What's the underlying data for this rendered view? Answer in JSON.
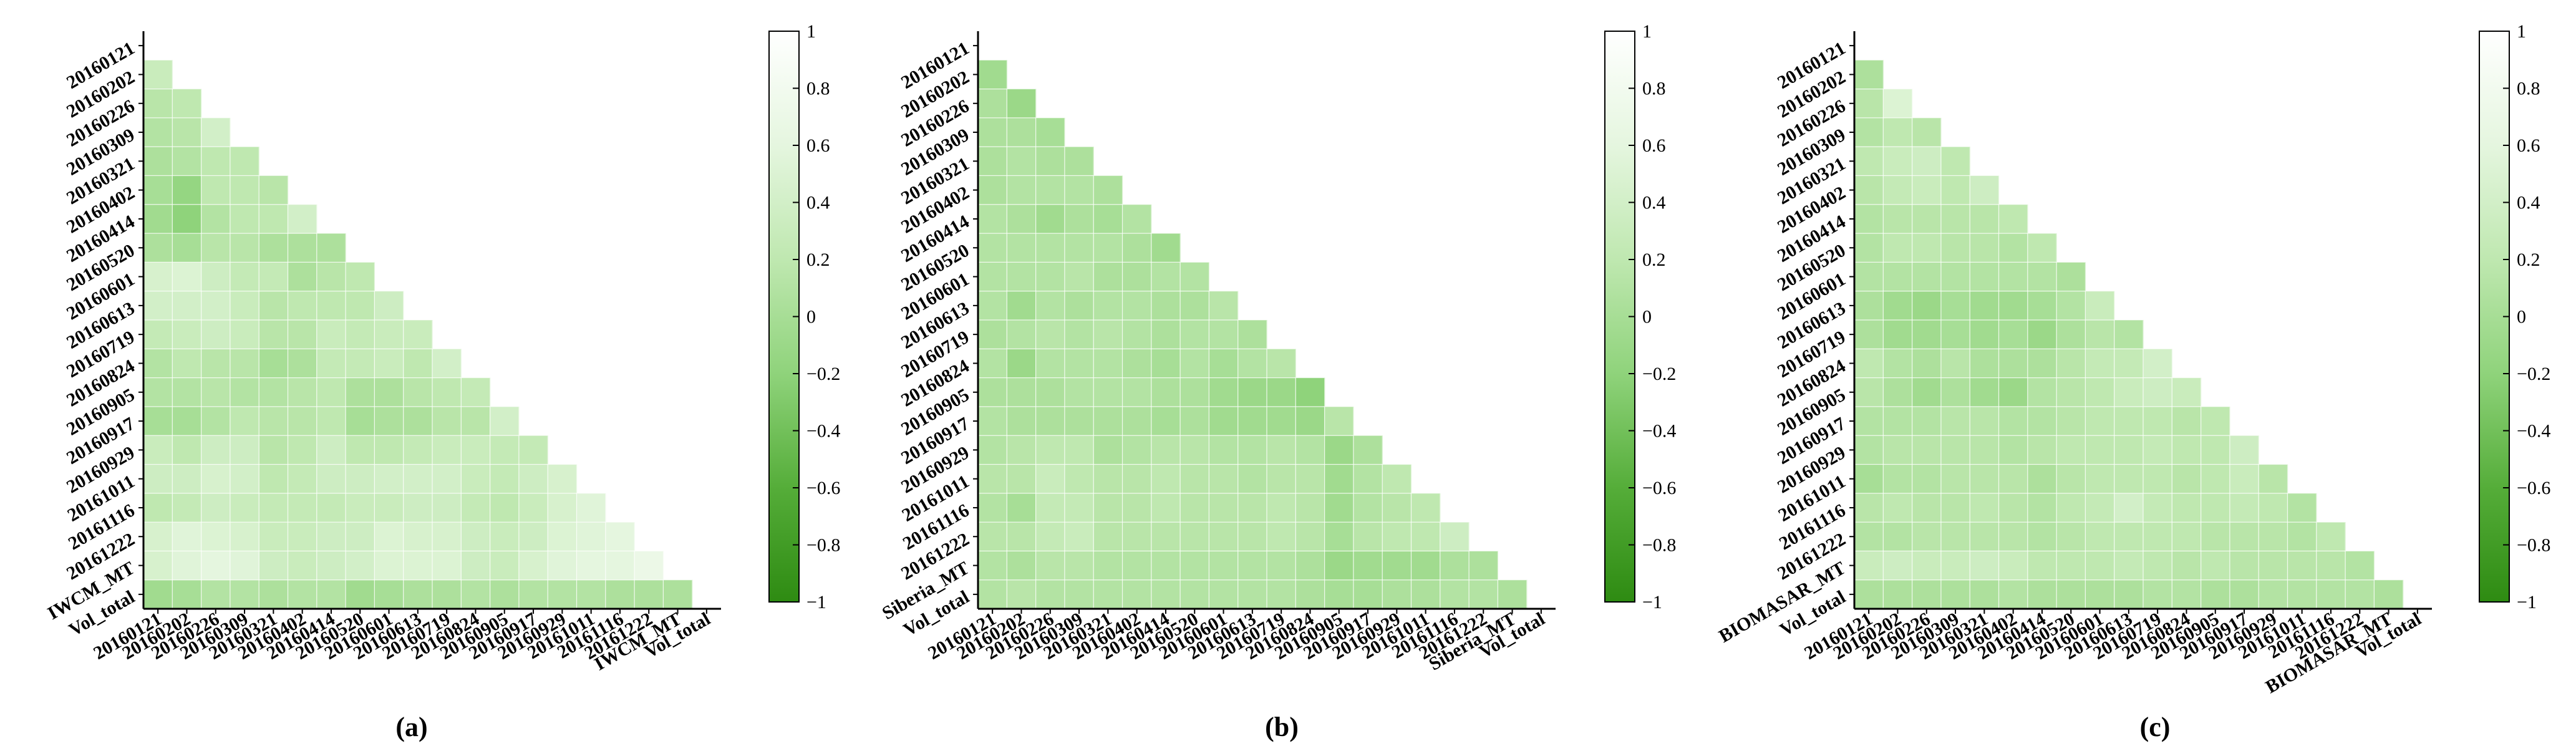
{
  "figure": {
    "background": "#ffffff",
    "colormap": {
      "stops": [
        {
          "v": -1.0,
          "color": "#2e8b12"
        },
        {
          "v": -0.6,
          "color": "#55ad39"
        },
        {
          "v": -0.2,
          "color": "#8fd37b"
        },
        {
          "v": 0.2,
          "color": "#bfe8b0"
        },
        {
          "v": 0.6,
          "color": "#e5f6df"
        },
        {
          "v": 1.0,
          "color": "#ffffff"
        }
      ]
    }
  },
  "chart_data": [
    {
      "type": "heatmap",
      "panel_label": "(a)",
      "variables": [
        "20160121",
        "20160202",
        "20160226",
        "20160309",
        "20160321",
        "20160402",
        "20160414",
        "20160520",
        "20160601",
        "20160613",
        "20160719",
        "20160824",
        "20160905",
        "20160917",
        "20160929",
        "20161011",
        "20161116",
        "20161222",
        "IWCM_MT",
        "Vol_total"
      ],
      "lower_triangle": [
        [
          0.3
        ],
        [
          0.15,
          0.2
        ],
        [
          0.1,
          0.15,
          0.4
        ],
        [
          0.05,
          0.1,
          0.2,
          0.2
        ],
        [
          0.0,
          -0.15,
          0.2,
          0.2,
          0.15
        ],
        [
          -0.05,
          -0.2,
          0.1,
          0.2,
          0.2,
          0.4
        ],
        [
          0.05,
          0.0,
          0.15,
          0.15,
          0.05,
          0.05,
          0.05
        ],
        [
          0.45,
          0.5,
          0.35,
          0.25,
          0.25,
          0.05,
          0.15,
          0.2
        ],
        [
          0.4,
          0.4,
          0.4,
          0.3,
          0.15,
          0.2,
          0.2,
          0.2,
          0.35
        ],
        [
          0.25,
          0.3,
          0.35,
          0.3,
          0.15,
          0.15,
          0.3,
          0.25,
          0.3,
          0.3
        ],
        [
          0.1,
          0.2,
          0.15,
          0.15,
          0.0,
          0.05,
          0.25,
          0.25,
          0.3,
          0.2,
          0.4
        ],
        [
          0.1,
          0.1,
          0.15,
          0.1,
          0.1,
          0.15,
          0.2,
          0.05,
          0.05,
          0.15,
          0.2,
          0.25
        ],
        [
          0.0,
          0.0,
          0.1,
          0.2,
          0.15,
          0.15,
          0.2,
          0.0,
          0.05,
          0.05,
          0.15,
          0.15,
          0.4
        ],
        [
          0.3,
          0.2,
          0.35,
          0.35,
          0.15,
          0.2,
          0.35,
          0.2,
          0.2,
          0.25,
          0.3,
          0.3,
          0.25,
          0.25
        ],
        [
          0.35,
          0.35,
          0.45,
          0.4,
          0.2,
          0.25,
          0.35,
          0.35,
          0.4,
          0.4,
          0.4,
          0.3,
          0.25,
          0.35,
          0.45
        ],
        [
          0.2,
          0.25,
          0.35,
          0.3,
          0.25,
          0.25,
          0.25,
          0.3,
          0.3,
          0.35,
          0.35,
          0.25,
          0.2,
          0.3,
          0.45,
          0.55
        ],
        [
          0.45,
          0.55,
          0.5,
          0.45,
          0.3,
          0.3,
          0.35,
          0.35,
          0.5,
          0.45,
          0.45,
          0.35,
          0.3,
          0.35,
          0.5,
          0.55,
          0.6
        ],
        [
          0.45,
          0.55,
          0.6,
          0.55,
          0.35,
          0.3,
          0.35,
          0.4,
          0.5,
          0.5,
          0.5,
          0.35,
          0.3,
          0.45,
          0.55,
          0.6,
          0.6,
          0.7
        ],
        [
          -0.05,
          0.0,
          0.1,
          0.1,
          0.05,
          0.1,
          0.1,
          -0.05,
          0.0,
          0.05,
          0.05,
          0.1,
          0.05,
          0.1,
          0.1,
          0.1,
          0.05,
          0.05,
          0.05
        ]
      ]
    },
    {
      "type": "heatmap",
      "panel_label": "(b)",
      "variables": [
        "20160121",
        "20160202",
        "20160226",
        "20160309",
        "20160321",
        "20160402",
        "20160414",
        "20160520",
        "20160601",
        "20160613",
        "20160719",
        "20160824",
        "20160905",
        "20160917",
        "20160929",
        "20161011",
        "20161116",
        "20161222",
        "Siberia_MT",
        "Vol_total"
      ],
      "lower_triangle": [
        [
          -0.05
        ],
        [
          0.05,
          -0.1
        ],
        [
          0.05,
          0.05,
          0.0
        ],
        [
          0.05,
          0.1,
          0.05,
          0.05
        ],
        [
          0.05,
          0.1,
          0.1,
          0.1,
          0.05
        ],
        [
          0.1,
          0.05,
          -0.05,
          0.05,
          0.0,
          0.1
        ],
        [
          0.1,
          0.1,
          0.1,
          0.1,
          0.1,
          0.05,
          -0.05
        ],
        [
          0.1,
          0.1,
          0.1,
          0.15,
          0.05,
          0.05,
          0.1,
          0.1
        ],
        [
          0.1,
          -0.05,
          0.1,
          0.05,
          0.1,
          0.1,
          0.05,
          0.05,
          0.15
        ],
        [
          0.05,
          0.1,
          0.15,
          0.1,
          0.15,
          0.1,
          0.05,
          0.1,
          0.1,
          0.05
        ],
        [
          0.1,
          -0.1,
          0.1,
          0.1,
          0.1,
          0.05,
          0.0,
          0.1,
          0.0,
          0.1,
          0.15
        ],
        [
          0.05,
          0.05,
          0.05,
          0.1,
          0.1,
          0.1,
          0.05,
          0.05,
          -0.05,
          -0.1,
          -0.1,
          -0.2
        ],
        [
          0.1,
          0.05,
          0.05,
          0.05,
          0.05,
          0.05,
          0.0,
          0.05,
          -0.05,
          -0.05,
          -0.05,
          -0.1,
          0.15
        ],
        [
          0.1,
          0.15,
          0.2,
          0.2,
          0.05,
          0.1,
          0.15,
          0.15,
          0.1,
          0.1,
          0.15,
          0.1,
          -0.1,
          0.05
        ],
        [
          0.15,
          0.15,
          0.3,
          0.2,
          0.15,
          0.15,
          0.2,
          0.15,
          0.15,
          0.1,
          0.15,
          0.15,
          -0.05,
          0.1,
          0.2
        ],
        [
          0.1,
          0.0,
          0.25,
          0.25,
          0.15,
          0.15,
          0.2,
          0.15,
          0.15,
          0.15,
          0.2,
          0.15,
          -0.05,
          0.1,
          0.15,
          0.2
        ],
        [
          0.15,
          0.15,
          0.25,
          0.3,
          0.15,
          0.15,
          0.15,
          0.15,
          0.15,
          0.15,
          0.2,
          0.15,
          0.0,
          0.15,
          0.2,
          0.2,
          0.35
        ],
        [
          0.1,
          0.05,
          0.15,
          0.15,
          0.1,
          0.1,
          0.1,
          0.1,
          0.1,
          0.1,
          0.1,
          0.05,
          -0.1,
          -0.05,
          -0.05,
          -0.05,
          0.05,
          0.05
        ],
        [
          0.1,
          0.15,
          0.1,
          0.1,
          0.1,
          0.1,
          0.1,
          0.1,
          0.1,
          0.1,
          0.1,
          0.05,
          0.0,
          0.0,
          0.05,
          0.05,
          0.1,
          0.1,
          0.05
        ]
      ]
    },
    {
      "type": "heatmap",
      "panel_label": "(c)",
      "variables": [
        "20160121",
        "20160202",
        "20160226",
        "20160309",
        "20160321",
        "20160402",
        "20160414",
        "20160520",
        "20160601",
        "20160613",
        "20160719",
        "20160824",
        "20160905",
        "20160917",
        "20160929",
        "20161011",
        "20161116",
        "20161222",
        "BIOMASAR_MT",
        "Vol_total"
      ],
      "lower_triangle": [
        [
          0.05
        ],
        [
          0.15,
          0.5
        ],
        [
          0.1,
          0.2,
          0.15
        ],
        [
          0.2,
          0.3,
          0.35,
          0.2
        ],
        [
          0.15,
          0.25,
          0.3,
          0.2,
          0.35
        ],
        [
          0.1,
          0.15,
          0.15,
          0.15,
          0.15,
          0.2
        ],
        [
          0.1,
          0.2,
          0.2,
          0.15,
          0.15,
          0.1,
          0.2
        ],
        [
          0.1,
          0.1,
          0.1,
          0.1,
          0.1,
          0.1,
          0.1,
          0.05
        ],
        [
          0.05,
          -0.05,
          -0.1,
          0.0,
          -0.05,
          -0.05,
          0.0,
          0.1,
          0.3
        ],
        [
          0.05,
          -0.05,
          -0.05,
          0.0,
          -0.05,
          0.0,
          -0.1,
          0.05,
          0.15,
          0.1
        ],
        [
          0.2,
          0.1,
          0.05,
          0.15,
          0.05,
          0.05,
          0.05,
          0.15,
          0.25,
          0.25,
          0.4
        ],
        [
          0.15,
          0.05,
          -0.05,
          0.05,
          -0.05,
          -0.1,
          0.1,
          0.15,
          0.2,
          0.3,
          0.35,
          0.3
        ],
        [
          0.1,
          0.1,
          0.1,
          0.15,
          0.15,
          0.1,
          0.1,
          0.15,
          0.2,
          0.2,
          0.2,
          0.15,
          0.2
        ],
        [
          0.1,
          0.15,
          0.15,
          0.15,
          0.15,
          0.1,
          0.15,
          0.2,
          0.2,
          0.2,
          0.25,
          0.2,
          0.2,
          0.35
        ],
        [
          0.0,
          0.1,
          0.1,
          0.15,
          0.15,
          0.15,
          0.05,
          0.15,
          0.2,
          0.2,
          0.2,
          0.15,
          0.2,
          0.3,
          0.15
        ],
        [
          0.15,
          0.2,
          0.15,
          0.15,
          0.2,
          0.15,
          0.1,
          0.2,
          0.25,
          0.4,
          0.25,
          0.2,
          0.2,
          0.25,
          0.2,
          0.1
        ],
        [
          0.1,
          0.1,
          0.15,
          0.15,
          0.15,
          0.15,
          0.1,
          0.15,
          0.2,
          0.2,
          0.2,
          0.2,
          0.15,
          0.15,
          0.15,
          0.1,
          0.2
        ],
        [
          0.3,
          0.35,
          0.3,
          0.3,
          0.35,
          0.3,
          0.2,
          0.2,
          0.2,
          0.25,
          0.2,
          0.15,
          0.2,
          0.15,
          0.15,
          0.15,
          0.15,
          0.1
        ],
        [
          0.05,
          0.05,
          0.05,
          0.05,
          0.05,
          0.1,
          0.05,
          0.05,
          0.05,
          0.05,
          0.1,
          0.1,
          0.05,
          0.05,
          0.1,
          0.1,
          0.1,
          0.1,
          0.05
        ]
      ]
    }
  ],
  "colorbar": {
    "ticks": [
      1,
      0.8,
      0.6,
      0.4,
      0.2,
      0,
      -0.2,
      -0.4,
      -0.6,
      -0.8,
      -1
    ],
    "tick_labels": [
      "1",
      "0.8",
      "0.6",
      "0.4",
      "0.2",
      "0",
      "−0.2",
      "−0.4",
      "−0.6",
      "−0.8",
      "−1"
    ]
  }
}
